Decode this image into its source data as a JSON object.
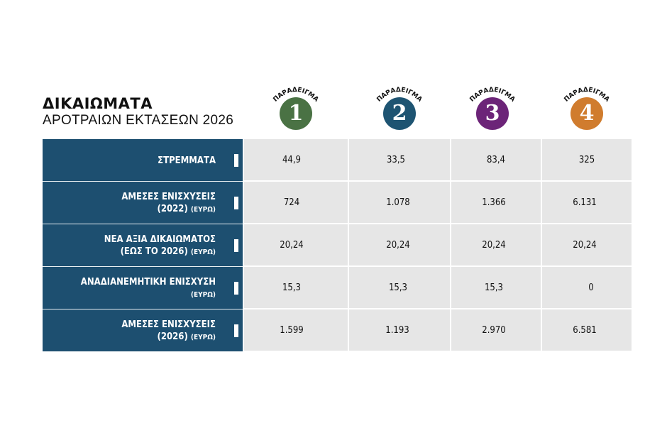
{
  "title": {
    "main": "ΔΙΚΑΙΩΜΑΤΑ",
    "sub": "ΑΡΟΤΡΑΙΩΝ ΕΚΤΑΣΕΩΝ 2026"
  },
  "examples": [
    {
      "label": "ΠΑΡΑΔΕΙΓΜΑ",
      "number": "1",
      "color": "#4a7244"
    },
    {
      "label": "ΠΑΡΑΔΕΙΓΜΑ",
      "number": "2",
      "color": "#1e5472"
    },
    {
      "label": "ΠΑΡΑΔΕΙΓΜΑ",
      "number": "3",
      "color": "#6c2478"
    },
    {
      "label": "ΠΑΡΑΔΕΙΓΜΑ",
      "number": "4",
      "color": "#d07c2e"
    }
  ],
  "rows": [
    {
      "label_1": "ΣΤΡΕΜΜΑΤΑ",
      "label_2": "",
      "label_2_small": "",
      "values": [
        "44,9",
        "33,5",
        "83,4",
        "325"
      ]
    },
    {
      "label_1": "ΑΜΕΣΕΣ ΕΝΙΣΧΥΣΕΙΣ",
      "label_2": "(2022)",
      "label_2_small": "(ΕΥΡΩ)",
      "values": [
        "724",
        "1.078",
        "1.366",
        "6.131"
      ]
    },
    {
      "label_1": "ΝΕΑ ΑΞΙΑ ΔΙΚΑΙΩΜΑΤΟΣ",
      "label_2": "(ΕΩΣ ΤΟ 2026)",
      "label_2_small": "(ΕΥΡΩ)",
      "values": [
        "20,24",
        "20,24",
        "20,24",
        "20,24"
      ]
    },
    {
      "label_1": "ΑΝΑΔΙΑΝΕΜΗΤΙΚΗ ΕΝΙΣΧΥΣΗ",
      "label_2": "",
      "label_2_small": "(ΕΥΡΩ)",
      "values": [
        "15,3",
        "15,3",
        "15,3",
        "0"
      ]
    },
    {
      "label_1": "ΑΜΕΣΕΣ ΕΝΙΣΧΥΣΕΙΣ",
      "label_2": "(2026)",
      "label_2_small": "(ΕΥΡΩ)",
      "values": [
        "1.599",
        "1.193",
        "2.970",
        "6.581"
      ]
    }
  ]
}
